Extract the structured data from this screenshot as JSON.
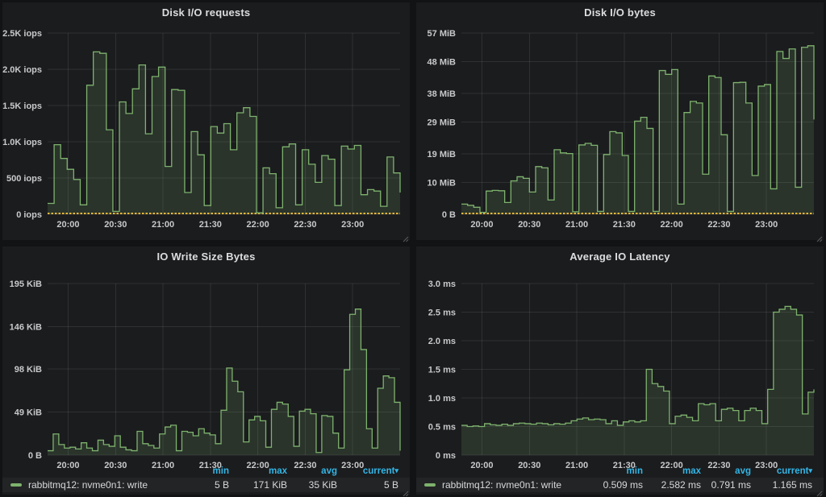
{
  "dashboard": {
    "panels": [
      {
        "title": "Disk I/O requests",
        "chart_data": {
          "type": "area",
          "unit": "iops",
          "x_range": [
            "19:47",
            "23:30"
          ],
          "x_ticks": [
            "20:00",
            "20:30",
            "21:00",
            "21:30",
            "22:00",
            "22:30",
            "23:00"
          ],
          "ylim": [
            0,
            2500
          ],
          "grid": true,
          "y_ticks": [
            {
              "value": 0,
              "label": "0 iops"
            },
            {
              "value": 500,
              "label": "500 iops"
            },
            {
              "value": 1000,
              "label": "1.0K iops"
            },
            {
              "value": 1500,
              "label": "1.5K iops"
            },
            {
              "value": 2000,
              "label": "2.0K iops"
            },
            {
              "value": 2500,
              "label": "2.5K iops"
            }
          ],
          "series": [
            {
              "color": "#7eb26d",
              "fill_opacity": 0.16,
              "values": [
                150,
                960,
                770,
                620,
                480,
                130,
                1780,
                2240,
                2220,
                1165,
                40,
                1550,
                1390,
                1730,
                2060,
                1110,
                1900,
                2030,
                660,
                1720,
                1710,
                300,
                1140,
                820,
                120,
                1210,
                1120,
                1250,
                890,
                1400,
                1470,
                1350,
                20,
                640,
                560,
                90,
                930,
                970,
                130,
                890,
                690,
                440,
                810,
                760,
                120,
                940,
                900,
                950,
                270,
                340,
                320,
                110,
                790,
                570,
                300
              ]
            }
          ],
          "zero_line_series": {
            "color": "#eab839"
          }
        }
      },
      {
        "title": "Disk I/O bytes",
        "chart_data": {
          "type": "area",
          "unit": "MiB",
          "x_range": [
            "19:47",
            "23:30"
          ],
          "x_ticks": [
            "20:00",
            "20:30",
            "21:00",
            "21:30",
            "22:00",
            "22:30",
            "23:00"
          ],
          "ylim": [
            0,
            57
          ],
          "grid": true,
          "y_ticks": [
            {
              "value": 0,
              "label": "0 B"
            },
            {
              "value": 10,
              "label": "10 MiB"
            },
            {
              "value": 19,
              "label": "19 MiB"
            },
            {
              "value": 29,
              "label": "29 MiB"
            },
            {
              "value": 38,
              "label": "38 MiB"
            },
            {
              "value": 48,
              "label": "48 MiB"
            },
            {
              "value": 57,
              "label": "57 MiB"
            }
          ],
          "series": [
            {
              "color": "#7eb26d",
              "fill_opacity": 0.16,
              "values": [
                3.2,
                2.8,
                2.2,
                0.6,
                7.3,
                7.5,
                7.4,
                3.7,
                10.5,
                11.8,
                11.3,
                7.0,
                15.0,
                14.6,
                4.5,
                20.3,
                19.3,
                19.1,
                0.8,
                21.8,
                22.3,
                21.7,
                0.9,
                18.8,
                26.0,
                25.6,
                18.5,
                0.9,
                29.3,
                30.5,
                27.0,
                0.9,
                45.2,
                44.0,
                45.5,
                3.2,
                32.0,
                35.5,
                35.0,
                12.6,
                43.5,
                43.0,
                25.0,
                0.9,
                41.4,
                41.5,
                35.0,
                12.2,
                40.3,
                40.8,
                8.0,
                51.2,
                49.0,
                52.0,
                8.5,
                52.5,
                53.0,
                29.8
              ]
            }
          ],
          "zero_line_series": {
            "color": "#eab839"
          }
        }
      },
      {
        "title": "IO Write Size Bytes",
        "chart_data": {
          "type": "area",
          "unit": "KiB",
          "x_range": [
            "19:47",
            "23:30"
          ],
          "x_ticks": [
            "20:00",
            "20:30",
            "21:00",
            "21:30",
            "22:00",
            "22:30",
            "23:00"
          ],
          "ylim": [
            0,
            195
          ],
          "grid": true,
          "y_ticks": [
            {
              "value": 0,
              "label": "0 B"
            },
            {
              "value": 49,
              "label": "49 KiB"
            },
            {
              "value": 98,
              "label": "98 KiB"
            },
            {
              "value": 146,
              "label": "146 KiB"
            },
            {
              "value": 195,
              "label": "195 KiB"
            }
          ],
          "series": [
            {
              "name": "rabbitmq12: nvme0n1: write",
              "color": "#7eb26d",
              "fill_opacity": 0.16,
              "values": [
                5,
                24,
                12,
                8,
                9,
                7,
                14,
                8,
                5,
                17,
                12,
                10,
                22,
                9,
                6,
                5,
                27,
                13,
                11,
                8,
                24,
                32,
                34,
                5,
                27,
                26,
                22,
                30,
                25,
                23,
                13,
                51,
                99,
                84,
                72,
                15,
                40,
                44,
                39,
                9,
                52,
                60,
                58,
                44,
                10,
                50,
                52,
                47,
                3,
                45,
                44,
                25,
                8,
                97,
                160,
                166,
                120,
                30,
                8,
                76,
                90,
                88,
                60,
                5
              ]
            }
          ]
        },
        "legend": {
          "columns": [
            "min",
            "max",
            "avg",
            "current"
          ],
          "sorted_column": "current",
          "sort_arrow": "▾",
          "rows": [
            {
              "name": "rabbitmq12: nvme0n1: write",
              "color": "#7eb26d",
              "values": [
                "5 B",
                "171 KiB",
                "35 KiB",
                "5 B"
              ]
            }
          ]
        }
      },
      {
        "title": "Average IO Latency",
        "chart_data": {
          "type": "area",
          "unit": "ms",
          "x_range": [
            "19:47",
            "23:30"
          ],
          "x_ticks": [
            "20:00",
            "20:30",
            "21:00",
            "21:30",
            "22:00",
            "22:30",
            "23:00"
          ],
          "ylim": [
            0,
            3
          ],
          "grid": true,
          "y_ticks": [
            {
              "value": 0,
              "label": "0 ms"
            },
            {
              "value": 0.5,
              "label": "0.5 ms"
            },
            {
              "value": 1,
              "label": "1.0 ms"
            },
            {
              "value": 1.5,
              "label": "1.5 ms"
            },
            {
              "value": 2,
              "label": "2.0 ms"
            },
            {
              "value": 2.5,
              "label": "2.5 ms"
            },
            {
              "value": 3,
              "label": "3.0 ms"
            }
          ],
          "series": [
            {
              "name": "rabbitmq12: nvme0n1: write",
              "color": "#7eb26d",
              "fill_opacity": 0.16,
              "values": [
                0.52,
                0.5,
                0.51,
                0.5,
                0.55,
                0.53,
                0.52,
                0.54,
                0.52,
                0.55,
                0.56,
                0.55,
                0.54,
                0.56,
                0.55,
                0.53,
                0.55,
                0.54,
                0.56,
                0.6,
                0.63,
                0.65,
                0.62,
                0.63,
                0.62,
                0.55,
                0.6,
                0.52,
                0.58,
                0.6,
                0.58,
                0.6,
                1.5,
                1.25,
                1.2,
                1.12,
                0.55,
                0.68,
                0.7,
                0.66,
                0.6,
                0.9,
                0.88,
                0.9,
                0.6,
                0.8,
                0.82,
                0.78,
                0.6,
                0.78,
                0.82,
                0.78,
                0.55,
                1.15,
                2.5,
                2.55,
                2.6,
                2.55,
                2.45,
                0.72,
                1.1,
                1.15
              ]
            }
          ]
        },
        "legend": {
          "columns": [
            "min",
            "max",
            "avg",
            "current"
          ],
          "sorted_column": "current",
          "sort_arrow": "▾",
          "rows": [
            {
              "name": "rabbitmq12: nvme0n1: write",
              "color": "#7eb26d",
              "values": [
                "0.509 ms",
                "2.582 ms",
                "0.791 ms",
                "1.165 ms"
              ]
            }
          ]
        }
      }
    ],
    "style": {
      "page_bg": "#121314",
      "panel_bg": "#1b1c1e",
      "grid_color": "rgba(255,255,255,0.09)",
      "axis_text_color": "#c8c9cb",
      "legend_header_color": "#33b5e5"
    }
  }
}
